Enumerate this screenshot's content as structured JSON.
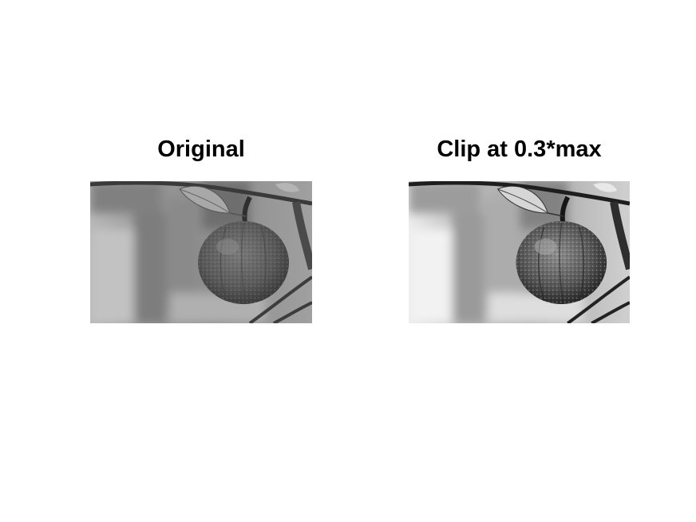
{
  "figure": {
    "panels": [
      {
        "title": "Original"
      },
      {
        "title": "Clip at 0.3*max"
      }
    ]
  }
}
